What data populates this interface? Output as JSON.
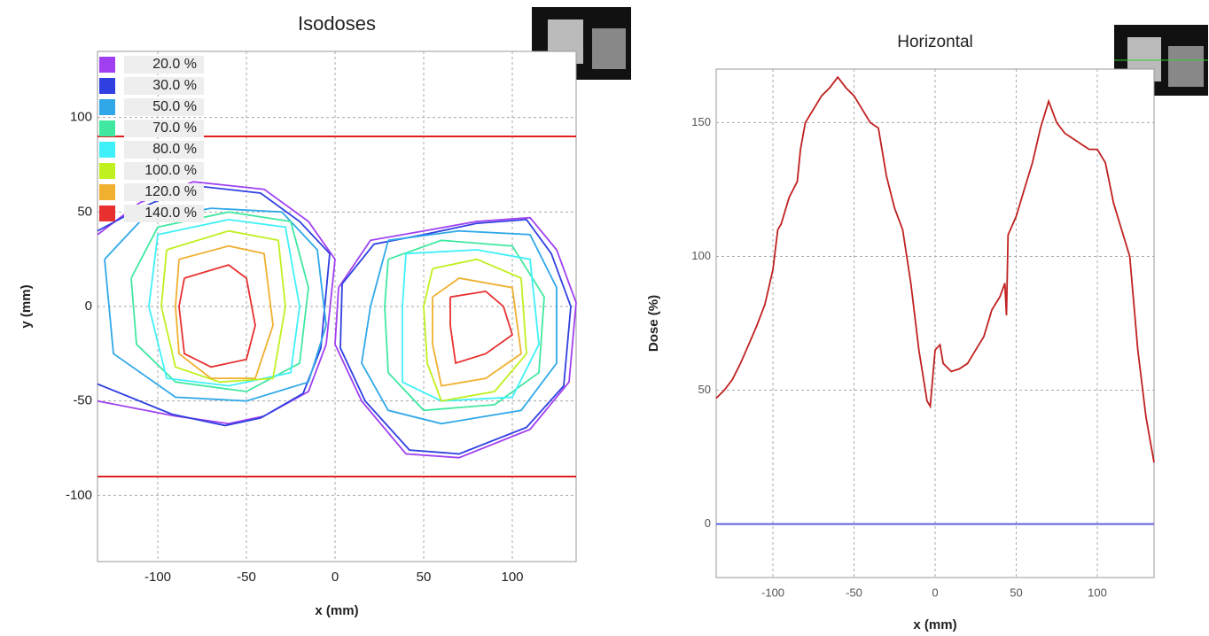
{
  "chart_data": [
    {
      "type": "contour",
      "title": "Isodoses",
      "x_label": "x (mm)",
      "y_label": "y (mm)",
      "xlim": [
        -134,
        136
      ],
      "ylim": [
        -135,
        135
      ],
      "xticks": [
        -100,
        -50,
        0,
        50,
        100
      ],
      "yticks": [
        -100,
        -50,
        0,
        50,
        100
      ],
      "grid": true,
      "hlines": [
        90,
        -90
      ],
      "hline_color": "#e02020",
      "legend": "upper left",
      "series": [
        {
          "name": "20.0 %",
          "color": "#a040f0",
          "x": [
            -134,
            -110,
            -80,
            -40,
            -15,
            0,
            -5,
            -15,
            -40,
            -60,
            -90,
            -134,
            null,
            2,
            20,
            50,
            80,
            110,
            125,
            136,
            132,
            110,
            70,
            40,
            15,
            0,
            2
          ],
          "y": [
            38,
            55,
            66,
            62,
            45,
            25,
            -20,
            -45,
            -58,
            -62,
            -58,
            -50,
            null,
            10,
            35,
            40,
            45,
            47,
            30,
            2,
            -40,
            -65,
            -80,
            -78,
            -50,
            -20,
            10
          ]
        },
        {
          "name": "30.0 %",
          "color": "#3040e0",
          "x": [
            -134,
            -110,
            -80,
            -42,
            -20,
            -3,
            -8,
            -18,
            -42,
            -62,
            -92,
            -134,
            null,
            4,
            22,
            50,
            80,
            108,
            122,
            133,
            129,
            108,
            70,
            42,
            17,
            3,
            4
          ],
          "y": [
            40,
            52,
            64,
            60,
            45,
            28,
            -22,
            -46,
            -59,
            -63,
            -57,
            -41,
            null,
            12,
            33,
            38,
            44,
            46,
            28,
            0,
            -42,
            -64,
            -78,
            -76,
            -50,
            -22,
            12
          ]
        },
        {
          "name": "50.0 %",
          "color": "#30a8e8",
          "x": [
            -130,
            -110,
            -70,
            -30,
            -10,
            -5,
            -15,
            -50,
            -90,
            -125,
            -130,
            null,
            30,
            70,
            110,
            125,
            125,
            105,
            60,
            30,
            15,
            20,
            30
          ],
          "y": [
            25,
            45,
            52,
            50,
            30,
            -10,
            -40,
            -50,
            -48,
            -25,
            25,
            null,
            35,
            40,
            38,
            10,
            -30,
            -55,
            -62,
            -55,
            -30,
            0,
            35
          ]
        },
        {
          "name": "70.0 %",
          "color": "#40e8a0",
          "x": [
            -115,
            -100,
            -60,
            -25,
            -15,
            -20,
            -50,
            -90,
            -112,
            -115,
            null,
            30,
            60,
            100,
            118,
            115,
            90,
            50,
            30,
            28,
            30
          ],
          "y": [
            15,
            42,
            50,
            45,
            10,
            -30,
            -45,
            -40,
            -20,
            15,
            null,
            25,
            35,
            32,
            5,
            -35,
            -52,
            -55,
            -35,
            0,
            25
          ]
        },
        {
          "name": "80.0 %",
          "color": "#40f0f8",
          "x": [
            -100,
            -60,
            -28,
            -20,
            -25,
            -60,
            -95,
            -105,
            -100,
            null,
            40,
            80,
            110,
            115,
            100,
            60,
            38,
            38,
            40
          ],
          "y": [
            38,
            46,
            42,
            0,
            -35,
            -42,
            -38,
            0,
            38,
            null,
            28,
            30,
            25,
            -20,
            -48,
            -50,
            -40,
            0,
            28
          ]
        },
        {
          "name": "100.0 %",
          "color": "#c0f020",
          "x": [
            -95,
            -60,
            -32,
            -28,
            -35,
            -65,
            -90,
            -98,
            -95,
            null,
            55,
            80,
            105,
            108,
            90,
            60,
            52,
            50,
            55
          ],
          "y": [
            30,
            40,
            35,
            0,
            -38,
            -40,
            -32,
            0,
            30,
            null,
            20,
            25,
            15,
            -25,
            -45,
            -50,
            -30,
            0,
            20
          ]
        },
        {
          "name": "120.0 %",
          "color": "#f0b030",
          "x": [
            -88,
            -60,
            -40,
            -35,
            -45,
            -70,
            -88,
            -90,
            -88,
            null,
            55,
            70,
            100,
            105,
            85,
            60,
            55,
            55
          ],
          "y": [
            25,
            32,
            28,
            -10,
            -38,
            -38,
            -25,
            0,
            25,
            null,
            5,
            15,
            10,
            -25,
            -38,
            -42,
            -20,
            5
          ]
        },
        {
          "name": "140.0 %",
          "color": "#e83030",
          "x": [
            -85,
            -60,
            -50,
            -45,
            -50,
            -70,
            -85,
            -88,
            -85,
            null,
            65,
            85,
            95,
            100,
            85,
            68,
            65,
            65
          ],
          "y": [
            15,
            22,
            15,
            -10,
            -28,
            -32,
            -25,
            0,
            15,
            null,
            5,
            8,
            0,
            -15,
            -25,
            -30,
            -10,
            5
          ]
        }
      ]
    },
    {
      "type": "line",
      "title": "Horizontal",
      "x_label": "x (mm)",
      "y_label": "Dose (%)",
      "xlim": [
        -135,
        135
      ],
      "ylim": [
        -20,
        170
      ],
      "xticks": [
        -100,
        -50,
        0,
        50,
        100
      ],
      "yticks": [
        0,
        50,
        100,
        150
      ],
      "grid": true,
      "hlines": [
        0
      ],
      "hline_color": "#6060e0",
      "series": [
        {
          "color": "#c02020",
          "x": [
            -135,
            -130,
            -125,
            -120,
            -115,
            -110,
            -105,
            -100,
            -97,
            -95,
            -90,
            -85,
            -83,
            -80,
            -75,
            -70,
            -65,
            -60,
            -55,
            -50,
            -45,
            -40,
            -35,
            -30,
            -25,
            -20,
            -15,
            -10,
            -5,
            -3,
            0,
            3,
            5,
            10,
            15,
            20,
            25,
            30,
            35,
            40,
            43,
            44,
            45,
            50,
            55,
            60,
            65,
            70,
            75,
            80,
            85,
            90,
            95,
            100,
            105,
            110,
            115,
            120,
            125,
            130,
            135
          ],
          "y": [
            47,
            50,
            54,
            60,
            67,
            74,
            82,
            95,
            110,
            112,
            122,
            128,
            140,
            150,
            155,
            160,
            163,
            167,
            163,
            160,
            155,
            150,
            148,
            130,
            118,
            110,
            90,
            65,
            46,
            44,
            65,
            67,
            60,
            57,
            58,
            60,
            65,
            70,
            80,
            85,
            90,
            78,
            108,
            115,
            125,
            135,
            148,
            158,
            150,
            146,
            144,
            142,
            140,
            140,
            135,
            120,
            110,
            100,
            65,
            40,
            23
          ]
        }
      ]
    }
  ]
}
